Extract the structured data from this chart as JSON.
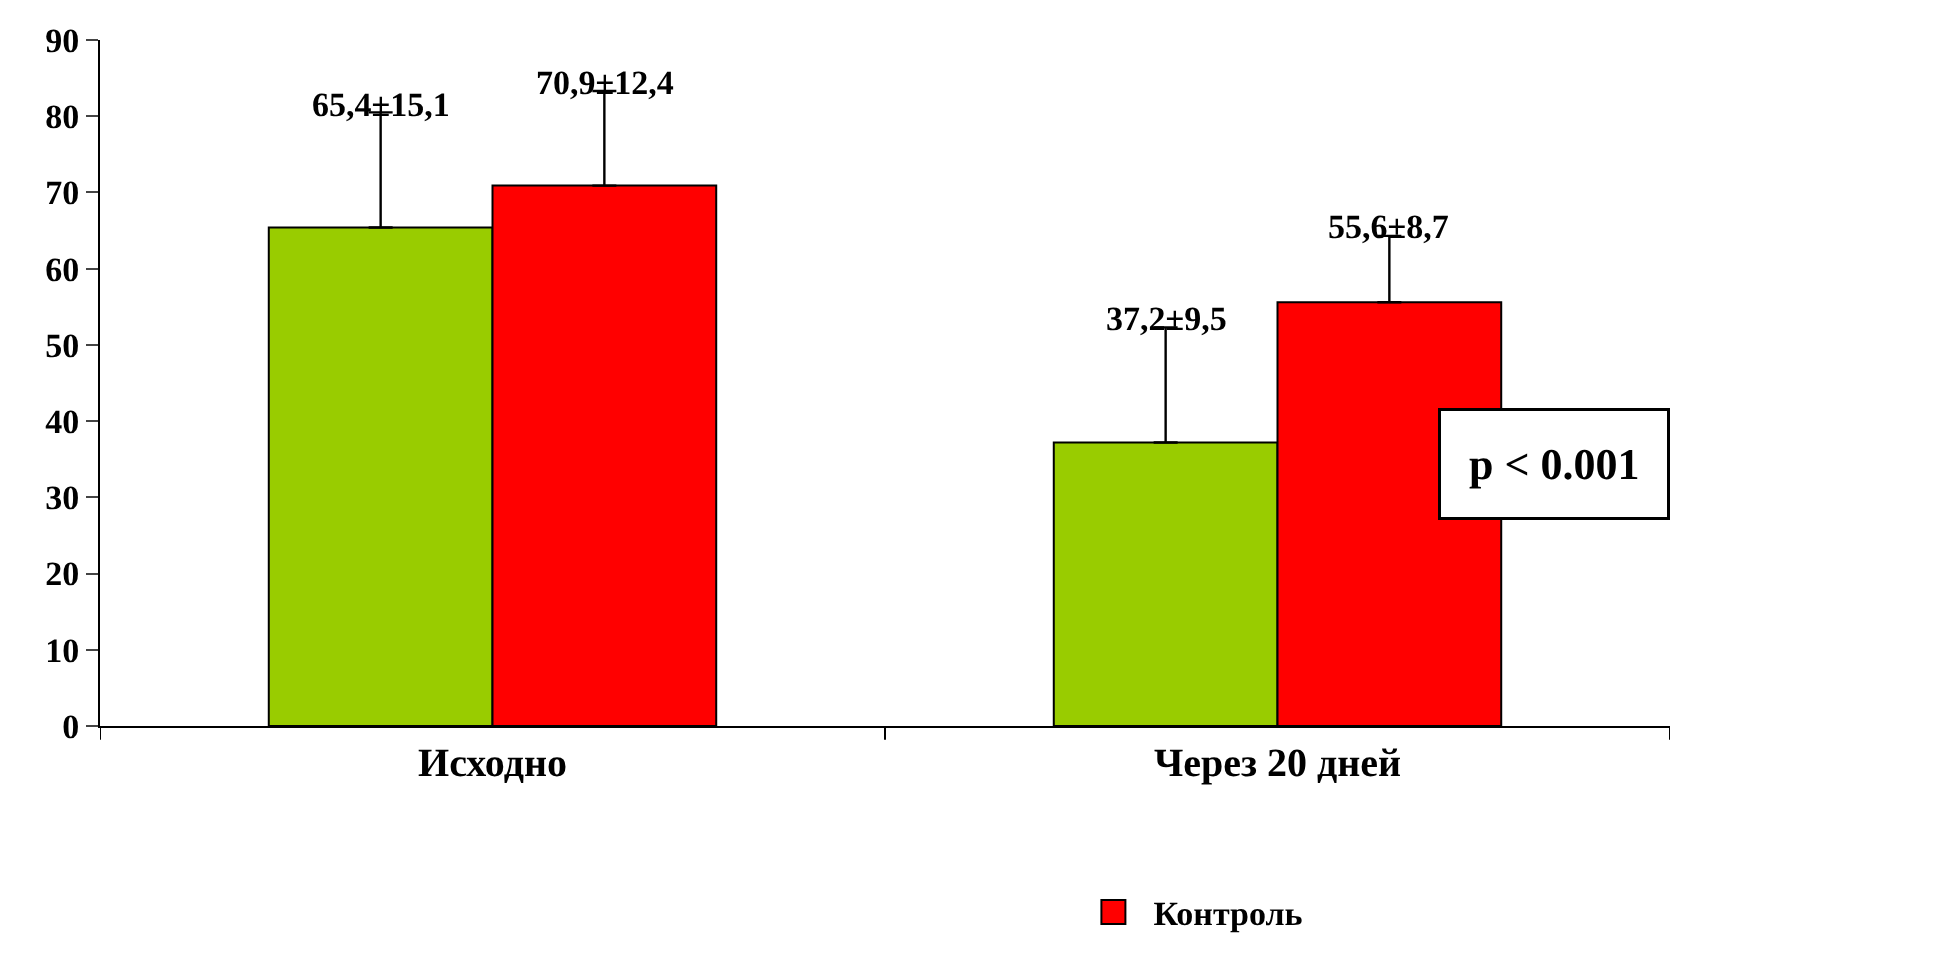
{
  "chart_data": {
    "type": "bar",
    "categories": [
      "Исходно",
      "Через 20 дней"
    ],
    "series": [
      {
        "color": "#99cc00",
        "values": [
          65.4,
          37.2
        ],
        "errors": [
          [
            65.4,
            80.5
          ],
          [
            37.2,
            52.3
          ]
        ],
        "value_labels": [
          "65,4±15,1",
          "37,2±9,5"
        ]
      },
      {
        "name": "Контроль",
        "color": "#ff0000",
        "values": [
          70.9,
          55.6
        ],
        "errors": [
          [
            70.9,
            83.3
          ],
          [
            55.6,
            64.3
          ]
        ],
        "value_labels": [
          "70,9±12,4",
          "55,6±8,7"
        ]
      }
    ],
    "ylim": [
      0,
      90
    ],
    "yticks": [
      0,
      10,
      20,
      30,
      40,
      50,
      60,
      70,
      80,
      90
    ],
    "annotations": [
      "p < 0.001"
    ],
    "legend": "bottom"
  }
}
